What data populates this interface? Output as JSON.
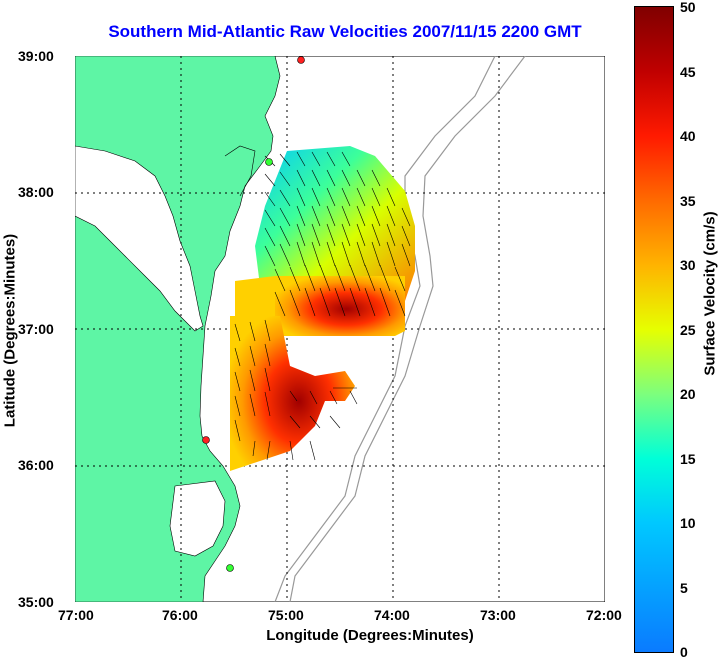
{
  "title": "Southern Mid-Atlantic Raw Velocities 2007/11/15 2200 GMT",
  "xlabel": "Longitude (Degrees:Minutes)",
  "ylabel": "Latitude (Degrees:Minutes)",
  "xticks": [
    "77:00",
    "76:00",
    "75:00",
    "74:00",
    "73:00",
    "72:00"
  ],
  "yticks": [
    "39:00",
    "38:00",
    "37:00",
    "36:00",
    "35:00"
  ],
  "colorbar": {
    "label": "Surface Velocity (cm/s)",
    "ticks": [
      "0",
      "5",
      "10",
      "15",
      "20",
      "25",
      "30",
      "35",
      "40",
      "45",
      "50"
    ]
  }
}
